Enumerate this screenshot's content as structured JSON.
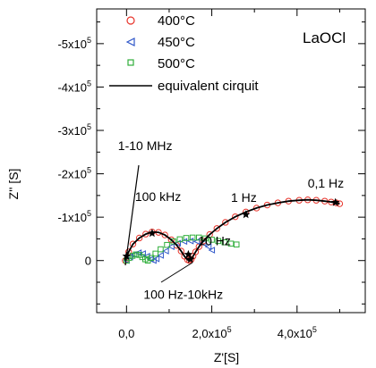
{
  "chart_data": {
    "type": "scatter",
    "title": "",
    "inset_label": "LaOCl",
    "xlabel": "Z'[S]",
    "ylabel": "Z'' [S]",
    "xlim": [
      -70000,
      560000
    ],
    "ylim": [
      -580000,
      120000
    ],
    "y_inverted": true,
    "grid": false,
    "legend_position": "top-left",
    "x_ticks": [
      {
        "value": 0,
        "label": "0,0"
      },
      {
        "value": 200000,
        "label": "2,0x10^5"
      },
      {
        "value": 400000,
        "label": "4,0x10^5"
      }
    ],
    "x_minor_ticks": [
      100000,
      300000,
      500000
    ],
    "y_ticks": [
      {
        "value": -500000,
        "label": "-5x10^5"
      },
      {
        "value": -400000,
        "label": "-4x10^5"
      },
      {
        "value": -300000,
        "label": "-3x10^5"
      },
      {
        "value": -200000,
        "label": "-2x10^5"
      },
      {
        "value": -100000,
        "label": "-1x10^5"
      },
      {
        "value": 0,
        "label": "0"
      }
    ],
    "y_minor_ticks": [
      -550000,
      -450000,
      -350000,
      -250000,
      -150000,
      -50000,
      50000,
      100000
    ],
    "series": [
      {
        "name": "400°C",
        "marker": "circle",
        "color": "#e8332a",
        "x": [
          -3000,
          5000,
          15000,
          30000,
          45000,
          60000,
          75000,
          90000,
          105000,
          118000,
          128000,
          136000,
          143000,
          148000,
          152000,
          156000,
          162000,
          170000,
          180000,
          195000,
          212000,
          232000,
          255000,
          280000,
          305000,
          330000,
          355000,
          380000,
          405000,
          425000,
          445000,
          465000,
          480000,
          492000,
          500000
        ],
        "y": [
          0,
          -20000,
          -38000,
          -52000,
          -61000,
          -66000,
          -65000,
          -59000,
          -48000,
          -35000,
          -22000,
          -10000,
          -2000,
          0,
          -3000,
          -10000,
          -20000,
          -32000,
          -45000,
          -60000,
          -74000,
          -88000,
          -101000,
          -112000,
          -121000,
          -128000,
          -133000,
          -137000,
          -139000,
          -140000,
          -139000,
          -137000,
          -135000,
          -133000,
          -131000
        ]
      },
      {
        "name": "450°C",
        "marker": "triangle-left",
        "color": "#2f57c9",
        "x": [
          0,
          8000,
          18000,
          28000,
          38000,
          48000,
          56000,
          63000,
          70000,
          80000,
          92000,
          105000,
          120000,
          135000,
          150000,
          165000,
          180000,
          192000,
          200000
        ],
        "y": [
          0,
          -8000,
          -14000,
          -18000,
          -16000,
          -10000,
          -3000,
          0,
          -4000,
          -12000,
          -22000,
          -32000,
          -40000,
          -44000,
          -45000,
          -44000,
          -40000,
          -32000,
          -24000
        ]
      },
      {
        "name": "500°C",
        "marker": "square",
        "color": "#2fae3a",
        "x": [
          0,
          6000,
          14000,
          22000,
          30000,
          37000,
          44000,
          50000,
          58000,
          68000,
          80000,
          95000,
          110000,
          125000,
          140000,
          155000,
          170000,
          185000,
          200000,
          215000,
          230000,
          245000,
          258000
        ],
        "y": [
          0,
          -6000,
          -11000,
          -14000,
          -13000,
          -8000,
          -3000,
          0,
          -6000,
          -16000,
          -26000,
          -36000,
          -44000,
          -49000,
          -52000,
          -53000,
          -53000,
          -51000,
          -48000,
          -45000,
          -42000,
          -39000,
          -37000
        ]
      },
      {
        "name": "equivalent cirquit",
        "marker": "line",
        "color": "#000000",
        "x": [
          -3000,
          5000,
          15000,
          30000,
          45000,
          60000,
          75000,
          90000,
          105000,
          118000,
          128000,
          136000,
          143000,
          148000,
          152000,
          156000,
          162000,
          170000,
          180000,
          195000,
          212000,
          232000,
          255000,
          280000,
          305000,
          330000,
          355000,
          380000,
          405000,
          425000,
          445000,
          465000,
          480000,
          492000,
          500000
        ],
        "y": [
          0,
          -20000,
          -38000,
          -52000,
          -61000,
          -66000,
          -65000,
          -59000,
          -48000,
          -35000,
          -22000,
          -10000,
          -2000,
          0,
          -3000,
          -10000,
          -20000,
          -32000,
          -45000,
          -60000,
          -74000,
          -88000,
          -101000,
          -112000,
          -121000,
          -128000,
          -133000,
          -137000,
          -139000,
          -140000,
          -139000,
          -137000,
          -135000,
          -133000,
          -131000
        ]
      }
    ],
    "star_points": {
      "x": [
        0,
        60000,
        145000,
        150000,
        280000,
        490000
      ],
      "y": [
        -10000,
        -63000,
        -14000,
        -3000,
        -106000,
        -134000
      ]
    },
    "annotations": [
      {
        "text": "1-10 MHz",
        "x": -20000,
        "y": -255000
      },
      {
        "text": "100 kHz",
        "x": 20000,
        "y": -137000
      },
      {
        "text": "1 Hz",
        "x": 245000,
        "y": -135000
      },
      {
        "text": "0,1 Hz",
        "x": 425000,
        "y": -168000
      },
      {
        "text": "10 Hz",
        "x": 168000,
        "y": -35000
      },
      {
        "text": "100 Hz-10kHz",
        "x": 40000,
        "y": 88000
      }
    ]
  }
}
